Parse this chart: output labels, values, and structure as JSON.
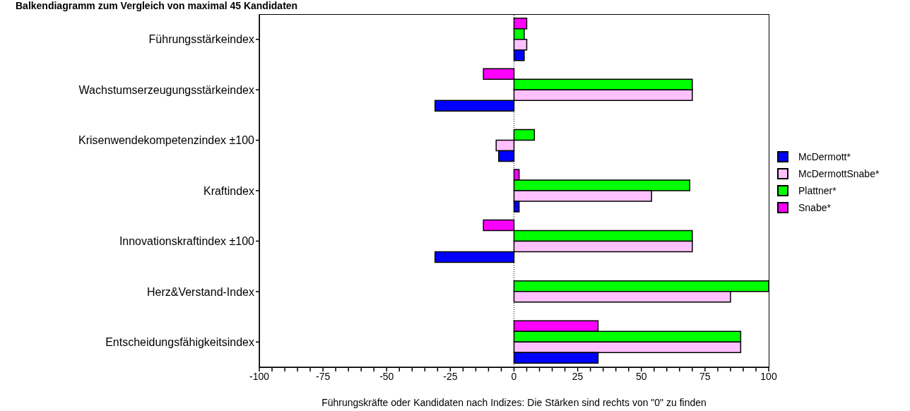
{
  "chart_data": {
    "type": "bar",
    "orientation": "horizontal",
    "title": "Balkendiagramm zum Vergleich von maximal 45 Kandidaten",
    "xlabel": "Führungskräfte oder Kandidaten nach Indizes: Die Stärken sind rechts von \"0\" zu finden",
    "categories": [
      "Führungsstärkeindex",
      "Wachstumserzeugungsstärkeindex",
      "Krisenwendekompetenzindex ±100",
      "Kraftindex",
      "Innovationskraftindex ±100",
      "Herz&Verstand-Index",
      "Entscheidungsfähigkeitsindex"
    ],
    "series": [
      {
        "name": "McDermott*",
        "color": "#0000ff",
        "values": [
          4,
          -31,
          -6,
          2,
          -31,
          null,
          33
        ]
      },
      {
        "name": "McDermottSnabe*",
        "color": "#ffc0ff",
        "values": [
          5,
          70,
          -7,
          54,
          70,
          85,
          89
        ]
      },
      {
        "name": "Plattner*",
        "color": "#00ff00",
        "values": [
          4,
          70,
          8,
          69,
          70,
          100,
          89
        ]
      },
      {
        "name": "Snabe*",
        "color": "#ff00ff",
        "values": [
          5,
          -12,
          null,
          2,
          -12,
          null,
          33
        ]
      }
    ],
    "xlim": [
      -100,
      100
    ],
    "xticks": [
      -100,
      {
        "value": -95,
        "label": null
      },
      {
        "value": -90,
        "label": null
      },
      {
        "value": -85,
        "label": null
      },
      {
        "value": -80,
        "label": null
      },
      -75,
      {
        "value": -70,
        "label": null
      },
      {
        "value": -65,
        "label": null
      },
      {
        "value": -60,
        "label": null
      },
      {
        "value": -55,
        "label": null
      },
      -50,
      {
        "value": -45,
        "label": null
      },
      {
        "value": -40,
        "label": null
      },
      {
        "value": -35,
        "label": null
      },
      {
        "value": -30,
        "label": null
      },
      -25,
      {
        "value": -20,
        "label": null
      },
      {
        "value": -15,
        "label": null
      },
      {
        "value": -10,
        "label": null
      },
      {
        "value": -5,
        "label": null
      },
      0,
      {
        "value": 5,
        "label": null
      },
      {
        "value": 10,
        "label": null
      },
      {
        "value": 15,
        "label": null
      },
      {
        "value": 20,
        "label": null
      },
      25,
      {
        "value": 30,
        "label": null
      },
      {
        "value": 35,
        "label": null
      },
      {
        "value": 40,
        "label": null
      },
      {
        "value": 45,
        "label": null
      },
      50,
      {
        "value": 55,
        "label": null
      },
      {
        "value": 60,
        "label": null
      },
      {
        "value": 65,
        "label": null
      },
      {
        "value": 70,
        "label": null
      },
      75,
      {
        "value": 80,
        "label": null
      },
      {
        "value": 85,
        "label": null
      },
      {
        "value": 90,
        "label": null
      },
      {
        "value": 95,
        "label": null
      },
      100
    ],
    "ref_lines": [
      {
        "axis": "x",
        "value": 0,
        "line_style": "dotted",
        "color": "#000000"
      }
    ],
    "legend": "right"
  }
}
